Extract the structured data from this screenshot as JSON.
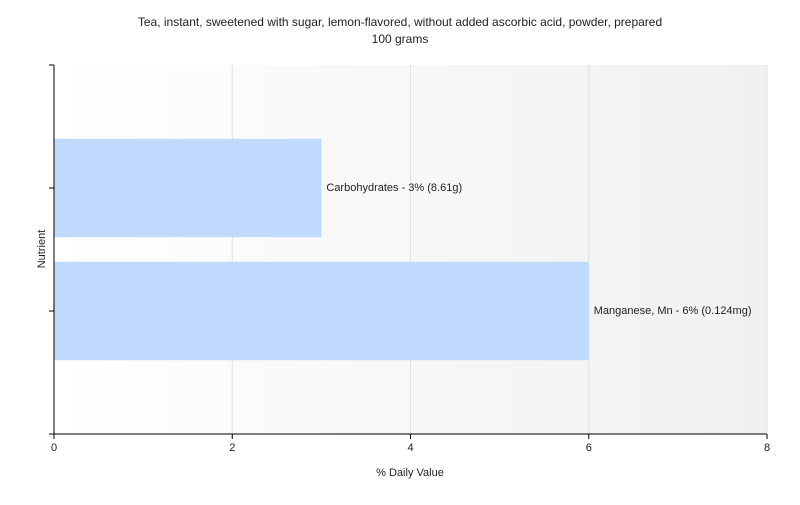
{
  "chart_data": {
    "type": "bar",
    "orientation": "horizontal",
    "title": "Tea, instant, sweetened with sugar, lemon-flavored, without added ascorbic acid, powder, prepared",
    "subtitle": "100 grams",
    "xlabel": "% Daily Value",
    "ylabel": "Nutrient",
    "values": [
      3,
      6
    ],
    "value_labels": [
      "Carbohydrates - 3% (8.61g)",
      "Manganese, Mn - 6% (0.124mg)"
    ],
    "color": "#bfdafc",
    "xlim": [
      0,
      8
    ],
    "xticks": [
      0,
      2,
      4,
      6,
      8
    ],
    "grid": true
  }
}
